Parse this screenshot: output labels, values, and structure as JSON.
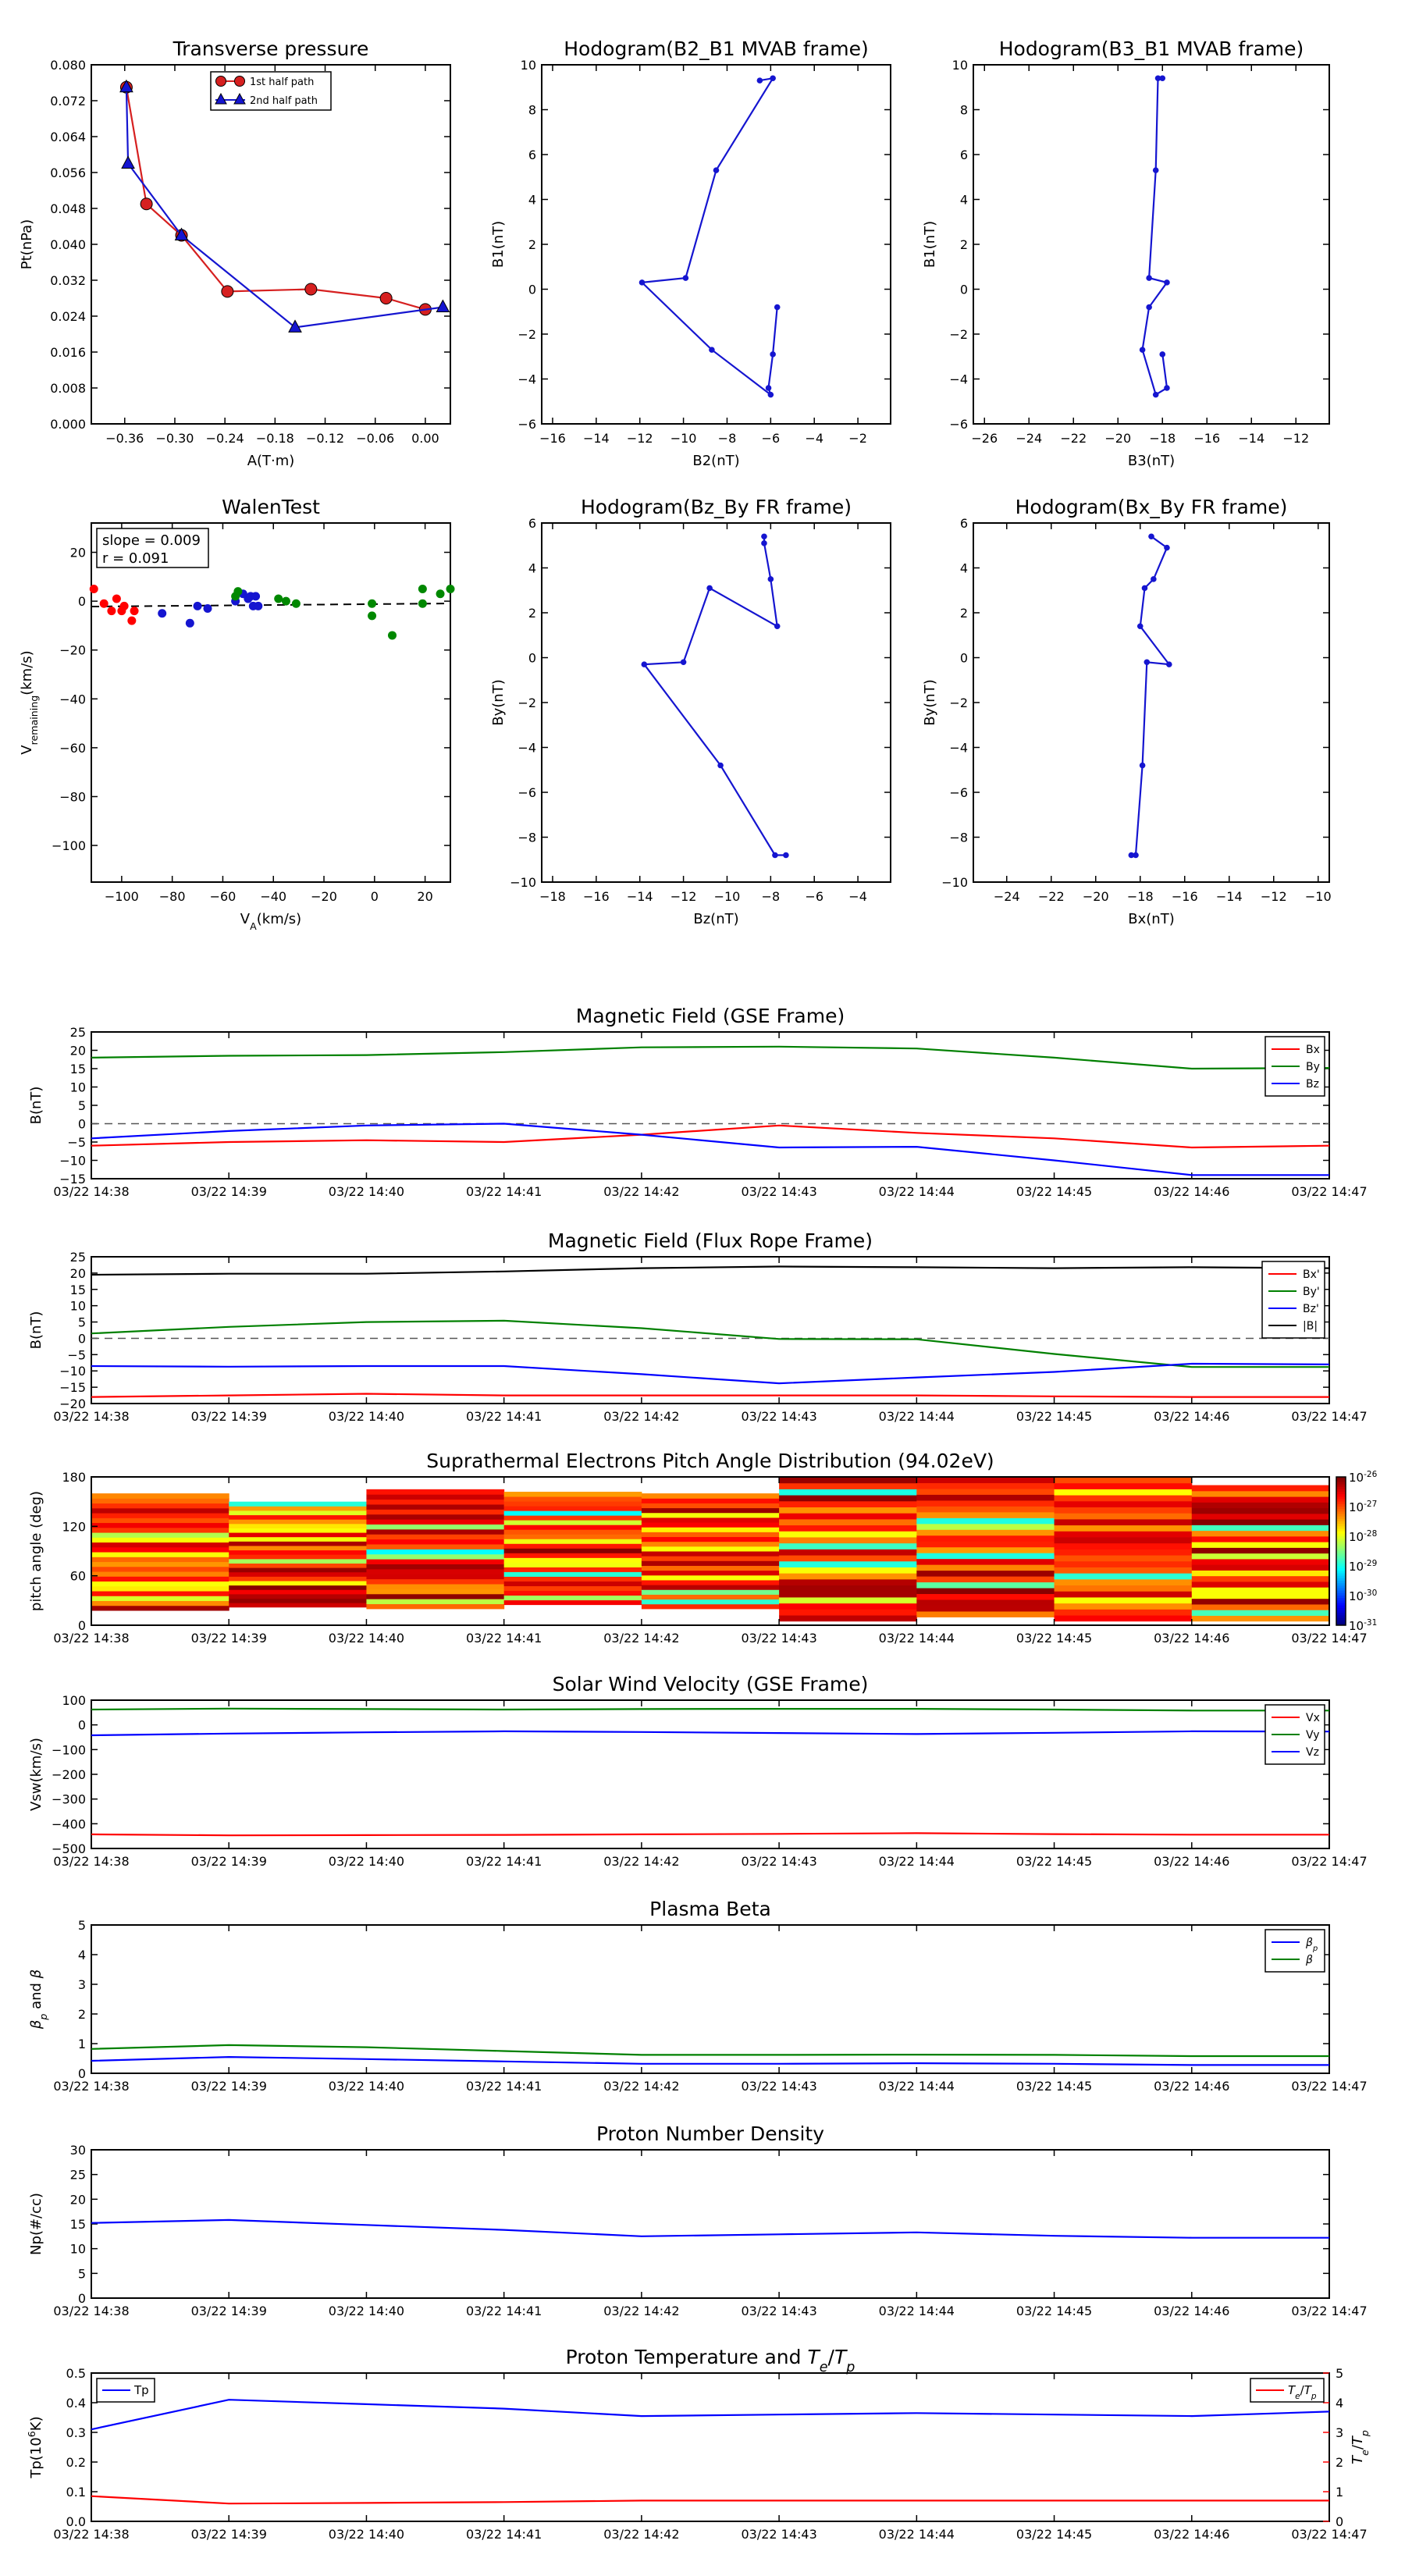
{
  "chart_data": [
    {
      "id": "tp",
      "type": "line",
      "title": "Transverse pressure",
      "xlabel": "A(T·m)",
      "ylabel": "Pt(nPa)",
      "xlim": [
        -0.4,
        0.03
      ],
      "ylim": [
        0,
        0.08
      ],
      "xticks": [
        -0.36,
        -0.3,
        -0.24,
        -0.18,
        -0.12,
        -0.06,
        0.0
      ],
      "yticks": [
        0.0,
        0.008,
        0.016,
        0.024,
        0.032,
        0.04,
        0.048,
        0.056,
        0.064,
        0.072,
        0.08
      ],
      "xtick_labels": [
        "−0.36",
        "−0.30",
        "−0.24",
        "−0.18",
        "−0.12",
        "−0.06",
        "0.00"
      ],
      "ytick_labels": [
        "0.000",
        "0.008",
        "0.016",
        "0.024",
        "0.032",
        "0.040",
        "0.048",
        "0.056",
        "0.064",
        "0.072",
        "0.080"
      ],
      "legend": "top-center",
      "series": [
        {
          "name": "1st half path",
          "color": "#d62020",
          "marker": "circle",
          "x": [
            -0.358,
            -0.334,
            -0.292,
            -0.237,
            -0.137,
            -0.047,
            0.0
          ],
          "y": [
            0.075,
            0.049,
            0.042,
            0.0295,
            0.03,
            0.028,
            0.0255
          ]
        },
        {
          "name": "2nd half path",
          "color": "#1515d0",
          "marker": "triangle",
          "x": [
            -0.358,
            -0.356,
            -0.292,
            -0.156,
            0.021
          ],
          "y": [
            0.075,
            0.058,
            0.042,
            0.0215,
            0.026
          ]
        }
      ]
    },
    {
      "id": "hod1",
      "type": "line",
      "title": "Hodogram(B2_B1 MVAB frame)",
      "xlabel": "B2(nT)",
      "ylabel": "B1(nT)",
      "xlim": [
        -16.5,
        -0.5
      ],
      "ylim": [
        -6,
        10
      ],
      "xticks": [
        -16,
        -14,
        -12,
        -10,
        -8,
        -6,
        -4,
        -2
      ],
      "yticks": [
        -6,
        -4,
        -2,
        0,
        2,
        4,
        6,
        8,
        10
      ],
      "series": [
        {
          "color": "#1515d0",
          "x": [
            -6.5,
            -5.9,
            -8.5,
            -9.9,
            -11.9,
            -8.7,
            -6.0,
            -6.1,
            -5.9,
            -5.7
          ],
          "y": [
            9.3,
            9.4,
            5.3,
            0.5,
            0.3,
            -2.7,
            -4.7,
            -4.4,
            -2.9,
            -0.8
          ]
        }
      ]
    },
    {
      "id": "hod2",
      "type": "line",
      "title": "Hodogram(B3_B1 MVAB frame)",
      "xlabel": "B3(nT)",
      "ylabel": "B1(nT)",
      "xlim": [
        -26.5,
        -10.5
      ],
      "ylim": [
        -6,
        10
      ],
      "xticks": [
        -26,
        -24,
        -22,
        -20,
        -18,
        -16,
        -14,
        -12
      ],
      "yticks": [
        -6,
        -4,
        -2,
        0,
        2,
        4,
        6,
        8,
        10
      ],
      "series": [
        {
          "color": "#1515d0",
          "x": [
            -18.0,
            -18.2,
            -18.3,
            -18.6,
            -17.8,
            -18.6,
            -18.9,
            -18.3,
            -17.8,
            -18.0
          ],
          "y": [
            9.4,
            9.4,
            5.3,
            0.5,
            0.3,
            -0.8,
            -2.7,
            -4.7,
            -4.4,
            -2.9
          ]
        }
      ]
    },
    {
      "id": "walen",
      "type": "scatter",
      "title": "WalenTest",
      "xlabel": "V_A(km/s)",
      "ylabel": "V_remaining(km/s)",
      "xlim": [
        -112,
        30
      ],
      "ylim": [
        -115,
        32
      ],
      "xticks": [
        -100,
        -80,
        -60,
        -40,
        -20,
        0,
        20
      ],
      "yticks": [
        -100,
        -80,
        -60,
        -40,
        -20,
        0,
        20
      ],
      "annotation": [
        "slope = 0.009",
        "r = 0.091"
      ],
      "fit_line": {
        "slope": 0.009,
        "intercept": -1.2
      },
      "series": [
        {
          "color": "#ff0000",
          "x": [
            -111,
            -107,
            -104,
            -102,
            -100,
            -99,
            -96,
            -95
          ],
          "y": [
            5,
            -1,
            -4,
            1,
            -4,
            -2,
            -8,
            -4
          ]
        },
        {
          "color": "#1515d0",
          "x": [
            -84,
            -73,
            -70,
            -66,
            -55,
            -52,
            -50,
            -49,
            -48,
            -47,
            -46
          ],
          "y": [
            -5,
            -9,
            -2,
            -3,
            0,
            3,
            1,
            2,
            -2,
            2,
            -2
          ]
        },
        {
          "color": "#008800",
          "x": [
            -55,
            -54,
            -38,
            -35,
            -31,
            -1,
            -1,
            7,
            19,
            19,
            26,
            30
          ],
          "y": [
            2,
            4,
            1,
            0,
            -1,
            -1,
            -6,
            -14,
            -1,
            5,
            3,
            5
          ]
        }
      ]
    },
    {
      "id": "hod3",
      "type": "line",
      "title": "Hodogram(Bz_By FR frame)",
      "xlabel": "Bz(nT)",
      "ylabel": "By(nT)",
      "xlim": [
        -18.5,
        -2.5
      ],
      "ylim": [
        -10,
        6
      ],
      "xticks": [
        -18,
        -16,
        -14,
        -12,
        -10,
        -8,
        -6,
        -4
      ],
      "yticks": [
        -10,
        -8,
        -6,
        -4,
        -2,
        0,
        2,
        4,
        6
      ],
      "series": [
        {
          "color": "#1515d0",
          "x": [
            -8.3,
            -8.3,
            -8.0,
            -7.7,
            -10.8,
            -12.0,
            -13.8,
            -10.3,
            -7.8,
            -7.3
          ],
          "y": [
            5.4,
            5.1,
            3.5,
            1.4,
            3.1,
            -0.2,
            -0.3,
            -4.8,
            -8.8,
            -8.8
          ]
        }
      ]
    },
    {
      "id": "hod4",
      "type": "line",
      "title": "Hodogram(Bx_By FR frame)",
      "xlabel": "Bx(nT)",
      "ylabel": "By(nT)",
      "xlim": [
        -25.5,
        -9.5
      ],
      "ylim": [
        -10,
        6
      ],
      "xticks": [
        -24,
        -22,
        -20,
        -18,
        -16,
        -14,
        -12,
        -10
      ],
      "yticks": [
        -10,
        -8,
        -6,
        -4,
        -2,
        0,
        2,
        4,
        6
      ],
      "series": [
        {
          "color": "#1515d0",
          "x": [
            -17.5,
            -16.8,
            -17.4,
            -17.8,
            -18.0,
            -16.7,
            -17.7,
            -17.9,
            -18.2,
            -18.4
          ],
          "y": [
            5.4,
            4.9,
            3.5,
            3.1,
            1.4,
            -0.3,
            -0.2,
            -4.8,
            -8.8,
            -8.8
          ]
        }
      ]
    },
    {
      "id": "mfgse",
      "type": "line",
      "title": "Magnetic Field (GSE Frame)",
      "ylabel": "B(nT)",
      "ylim": [
        -15,
        25
      ],
      "yticks": [
        -15,
        -10,
        -5,
        0,
        5,
        10,
        15,
        20,
        25
      ],
      "x": [
        "03/22 14:38",
        "03/22 14:39",
        "03/22 14:40",
        "03/22 14:41",
        "03/22 14:42",
        "03/22 14:43",
        "03/22 14:44",
        "03/22 14:45",
        "03/22 14:46",
        "03/22 14:47"
      ],
      "zero_line": true,
      "legend": "top-right",
      "series": [
        {
          "name": "Bx",
          "color": "#ff0000",
          "values": [
            -6,
            -5,
            -4.5,
            -5,
            -3,
            -0.5,
            -2.5,
            -4,
            -6.5,
            -6
          ]
        },
        {
          "name": "By",
          "color": "#008000",
          "values": [
            18,
            18.5,
            18.7,
            19.5,
            20.8,
            21,
            20.5,
            18,
            15,
            15.2
          ]
        },
        {
          "name": "Bz",
          "color": "#0000ff",
          "values": [
            -4,
            -2,
            -0.5,
            0,
            -3,
            -6.5,
            -6.3,
            -10,
            -14,
            -14
          ]
        }
      ]
    },
    {
      "id": "mffr",
      "type": "line",
      "title": "Magnetic Field (Flux Rope Frame)",
      "ylabel": "B(nT)",
      "ylim": [
        -20,
        25
      ],
      "yticks": [
        -20,
        -15,
        -10,
        -5,
        0,
        5,
        10,
        15,
        20,
        25
      ],
      "x": [
        "03/22 14:38",
        "03/22 14:39",
        "03/22 14:40",
        "03/22 14:41",
        "03/22 14:42",
        "03/22 14:43",
        "03/22 14:44",
        "03/22 14:45",
        "03/22 14:46",
        "03/22 14:47"
      ],
      "zero_line": true,
      "legend": "top-right",
      "series": [
        {
          "name": "Bx'",
          "color": "#ff0000",
          "values": [
            -18,
            -17.5,
            -17,
            -17.5,
            -17.5,
            -17.5,
            -17.5,
            -17.8,
            -18,
            -18
          ]
        },
        {
          "name": "By'",
          "color": "#008000",
          "values": [
            1.5,
            3.5,
            5,
            5.4,
            3.1,
            -0.2,
            -0.3,
            -4.8,
            -8.8,
            -8.8
          ]
        },
        {
          "name": "Bz'",
          "color": "#0000ff",
          "values": [
            -8.5,
            -8.7,
            -8.5,
            -8.5,
            -11,
            -13.8,
            -12,
            -10.3,
            -7.8,
            -8
          ]
        },
        {
          "name": "|B|",
          "color": "#000000",
          "values": [
            19.5,
            19.8,
            19.8,
            20.5,
            21.5,
            22,
            21.8,
            21.5,
            21.8,
            21.5
          ]
        }
      ]
    },
    {
      "id": "pad",
      "type": "heatmap",
      "title": "Suprathermal Electrons Pitch Angle Distribution (94.02eV)",
      "ylabel": "pitch angle (deg)",
      "ylim": [
        0,
        180
      ],
      "yticks": [
        0,
        60,
        120,
        180
      ],
      "x": [
        "03/22 14:38",
        "03/22 14:39",
        "03/22 14:40",
        "03/22 14:41",
        "03/22 14:42",
        "03/22 14:43",
        "03/22 14:44",
        "03/22 14:45",
        "03/22 14:46",
        "03/22 14:47"
      ],
      "colorbar_ticks": [
        "10",
        "10",
        "10",
        "10",
        "10",
        "10"
      ],
      "colorbar_exponents": [
        "-26",
        "-27",
        "-28",
        "-29",
        "-30",
        "-31"
      ]
    },
    {
      "id": "swv",
      "type": "line",
      "title": "Solar Wind Velocity (GSE Frame)",
      "ylabel": "Vsw(km/s)",
      "ylim": [
        -500,
        100
      ],
      "yticks": [
        -500,
        -400,
        -300,
        -200,
        -100,
        0,
        100
      ],
      "x": [
        "03/22 14:38",
        "03/22 14:39",
        "03/22 14:40",
        "03/22 14:41",
        "03/22 14:42",
        "03/22 14:43",
        "03/22 14:44",
        "03/22 14:45",
        "03/22 14:46",
        "03/22 14:47"
      ],
      "legend": "top-right",
      "series": [
        {
          "name": "Vx",
          "color": "#ff0000",
          "values": [
            -443,
            -447,
            -446,
            -445,
            -443,
            -441,
            -438,
            -442,
            -444,
            -444
          ]
        },
        {
          "name": "Vy",
          "color": "#008000",
          "values": [
            62,
            66,
            64,
            62,
            64,
            65,
            65,
            62,
            58,
            58
          ]
        },
        {
          "name": "Vz",
          "color": "#0000ff",
          "values": [
            -42,
            -35,
            -30,
            -26,
            -29,
            -33,
            -37,
            -32,
            -26,
            -27
          ]
        }
      ]
    },
    {
      "id": "beta",
      "type": "line",
      "title": "Plasma Beta",
      "ylabel": "β_p and β",
      "ylim": [
        0,
        5
      ],
      "yticks": [
        0,
        1,
        2,
        3,
        4,
        5
      ],
      "x": [
        "03/22 14:38",
        "03/22 14:39",
        "03/22 14:40",
        "03/22 14:41",
        "03/22 14:42",
        "03/22 14:43",
        "03/22 14:44",
        "03/22 14:45",
        "03/22 14:46",
        "03/22 14:47"
      ],
      "legend": "top-right",
      "series": [
        {
          "name": "β_p",
          "color": "#0000ff",
          "values": [
            0.42,
            0.55,
            0.48,
            0.4,
            0.32,
            0.32,
            0.34,
            0.32,
            0.28,
            0.28
          ]
        },
        {
          "name": "β",
          "color": "#008000",
          "values": [
            0.82,
            0.95,
            0.88,
            0.75,
            0.62,
            0.62,
            0.63,
            0.62,
            0.58,
            0.58
          ]
        }
      ]
    },
    {
      "id": "pnd",
      "type": "line",
      "title": "Proton Number Density",
      "ylabel": "Np(#/cc)",
      "ylim": [
        0,
        30
      ],
      "yticks": [
        0,
        5,
        10,
        15,
        20,
        25,
        30
      ],
      "x": [
        "03/22 14:38",
        "03/22 14:39",
        "03/22 14:40",
        "03/22 14:41",
        "03/22 14:42",
        "03/22 14:43",
        "03/22 14:44",
        "03/22 14:45",
        "03/22 14:46",
        "03/22 14:47"
      ],
      "series": [
        {
          "color": "#0000ff",
          "values": [
            15.2,
            15.8,
            14.8,
            13.8,
            12.5,
            12.9,
            13.3,
            12.6,
            12.2,
            12.2
          ]
        }
      ]
    },
    {
      "id": "ptemp",
      "type": "line",
      "title": "Proton Temperature and T_e/T_p",
      "ylabel": "Tp(10^6K)",
      "ylim": [
        0,
        0.5
      ],
      "yticks": [
        0.0,
        0.1,
        0.2,
        0.3,
        0.4,
        0.5
      ],
      "y2label": "T_e/T_p",
      "y2lim": [
        0,
        5
      ],
      "y2ticks": [
        0,
        1,
        2,
        3,
        4,
        5
      ],
      "x": [
        "03/22 14:38",
        "03/22 14:39",
        "03/22 14:40",
        "03/22 14:41",
        "03/22 14:42",
        "03/22 14:43",
        "03/22 14:44",
        "03/22 14:45",
        "03/22 14:46",
        "03/22 14:47"
      ],
      "series": [
        {
          "name": "Tp",
          "axis": "left",
          "color": "#0000ff",
          "values": [
            0.31,
            0.41,
            0.395,
            0.38,
            0.355,
            0.36,
            0.365,
            0.36,
            0.355,
            0.37
          ]
        },
        {
          "name": "T_e/T_p",
          "axis": "right",
          "color": "#ff0000",
          "values": [
            0.85,
            0.6,
            0.62,
            0.65,
            0.7,
            0.7,
            0.7,
            0.7,
            0.7,
            0.7
          ]
        }
      ]
    }
  ]
}
